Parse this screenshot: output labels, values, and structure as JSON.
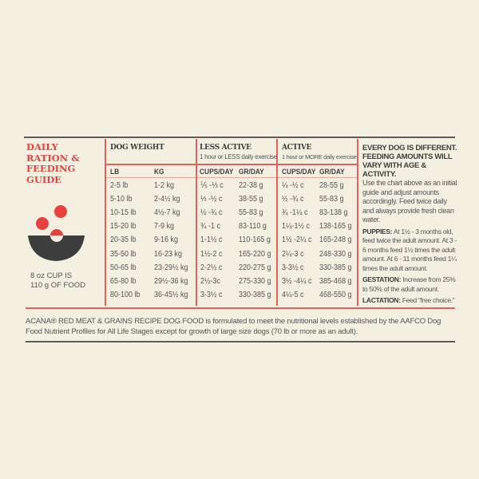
{
  "title": "DAILY RATION & FEEDING GUIDE",
  "cup_note": [
    "8 oz CUP IS",
    "110 g OF FOOD"
  ],
  "dog_weight": {
    "header": "DOG WEIGHT",
    "col_lb": "LB",
    "col_kg": "KG"
  },
  "less_active": {
    "header": "LESS ACTIVE",
    "sub": "1 hour or LESS daily exercise",
    "col_cups": "CUPS/DAY",
    "col_gr": "GR/DAY"
  },
  "active": {
    "header": "ACTIVE",
    "sub": "1 hour or MORE daily exercise",
    "col_cups": "CUPS/DAY",
    "col_gr": "GR/DAY"
  },
  "rows": [
    {
      "lb": "2-5 lb",
      "kg": "1-2 kg",
      "la_cups": "⅕ -⅓ c",
      "la_gr": "22-38 g",
      "a_cups": "¼ -½ c",
      "a_gr": "28-55 g"
    },
    {
      "lb": "5-10 lb",
      "kg": "2-4½ kg",
      "la_cups": "⅓ -½ c",
      "la_gr": "38-55 g",
      "a_cups": "½ -¾ c",
      "a_gr": "55-83 g"
    },
    {
      "lb": "10-15 lb",
      "kg": "4½-7 kg",
      "la_cups": "½ -¾ c",
      "la_gr": "55-83 g",
      "a_cups": "¾ -1¼ c",
      "a_gr": "83-138 g"
    },
    {
      "lb": "15-20 lb",
      "kg": "7-9 kg",
      "la_cups": "¾ -1 c",
      "la_gr": "83-110 g",
      "a_cups": "1¼-1½ c",
      "a_gr": "138-165 g"
    },
    {
      "lb": "20-35 lb",
      "kg": "9-16 kg",
      "la_cups": "1-1½ c",
      "la_gr": "110-165 g",
      "a_cups": "1½ -2¼ c",
      "a_gr": "165-248 g"
    },
    {
      "lb": "35-50 lb",
      "kg": "16-23 kg",
      "la_cups": "1½-2 c",
      "la_gr": "165-220 g",
      "a_cups": "2¼-3 c",
      "a_gr": "248-330 g"
    },
    {
      "lb": "50-65 lb",
      "kg": "23-29½ kg",
      "la_cups": "2-2½ c",
      "la_gr": "220-275 g",
      "a_cups": "3-3½ c",
      "a_gr": "330-385 g"
    },
    {
      "lb": "65-80 lb",
      "kg": "29½-36 kg",
      "la_cups": "2½-3c",
      "la_gr": "275-330 g",
      "a_cups": "3½ -4¼ c",
      "a_gr": "385-468 g"
    },
    {
      "lb": "80-100 lb",
      "kg": "36-45½ kg",
      "la_cups": "3-3½ c",
      "la_gr": "330-385 g",
      "a_cups": "4¼-5 c",
      "a_gr": "468-550 g"
    }
  ],
  "notes": {
    "headline": "EVERY DOG IS DIFFERENT. FEEDING AMOUNTS WILL VARY WITH AGE & ACTIVITY.",
    "intro": "Use the chart above as an initial guide and adjust amounts accordingly. Feed twice daily and always provide fresh clean water.",
    "puppies_label": "PUPPIES:",
    "puppies": "At 1½ - 3 months old, feed twice the adult amount. At 3 - 6 months feed 1½ times the adult amount. At 6 - 11 months feed 1¼ times the adult amount.",
    "gestation_label": "GESTATION:",
    "gestation": "Increase from 25% to 50% of the adult amount.",
    "lactation_label": "LACTATION:",
    "lactation": "Feed “free choice.”"
  },
  "footer": "ACANA® RED MEAT & GRAINS RECIPE DOG FOOD is formulated to meet the nutritional levels established by the AAFCO Dog Food Nutrient Profiles for All Life Stages except for growth of large size dogs (70 lb or more as an adult).",
  "colors": {
    "accent": "#e8413e",
    "bowl": "#3d3d3d",
    "background": "#f3f0e2"
  }
}
